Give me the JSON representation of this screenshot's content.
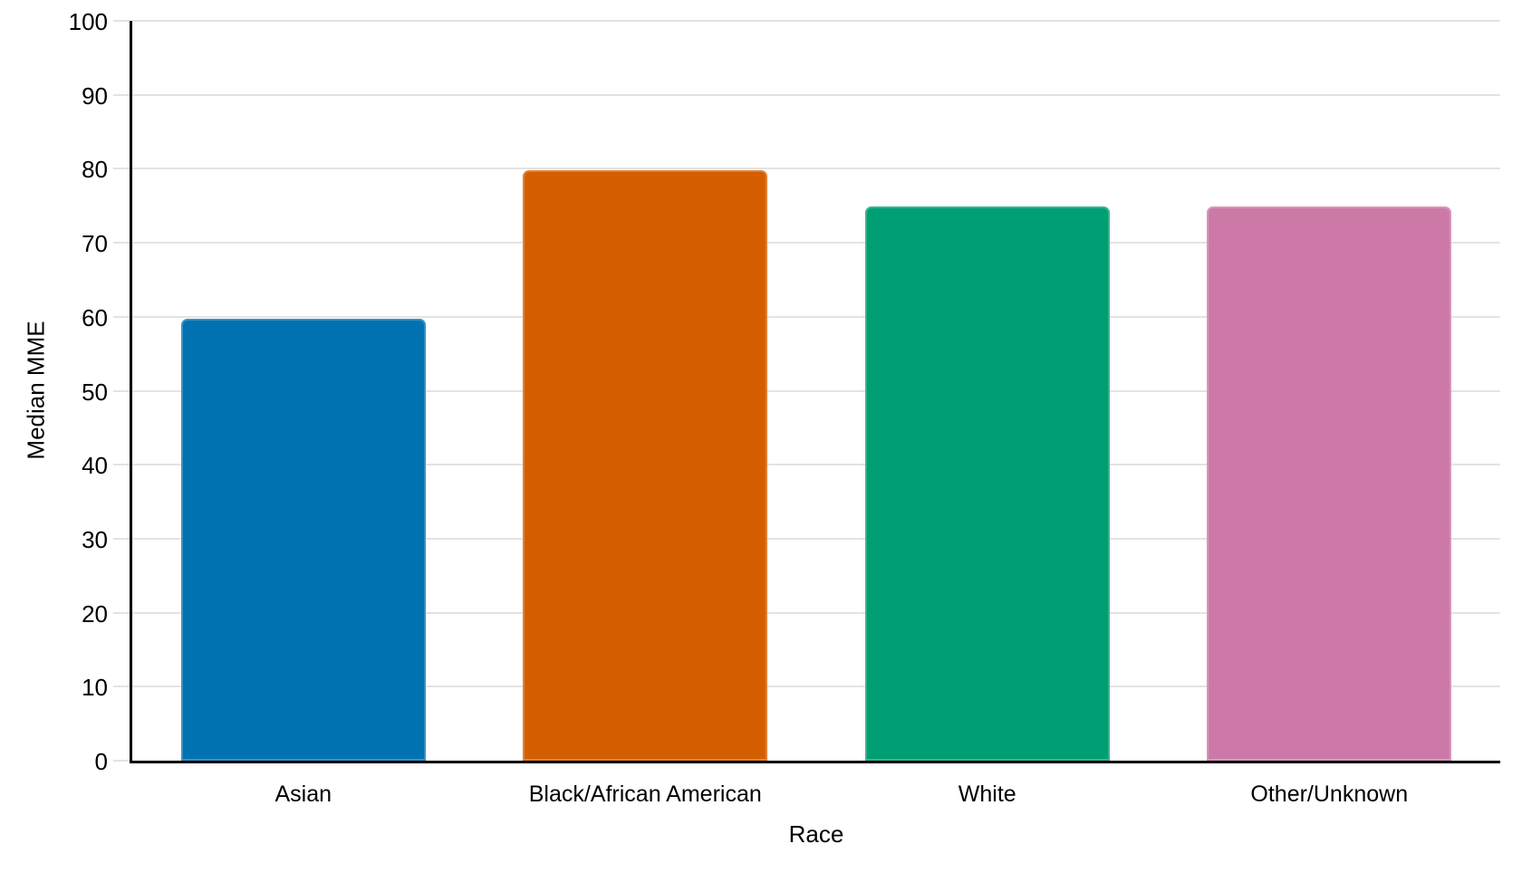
{
  "chart_data": {
    "type": "bar",
    "title": "",
    "categories": [
      "Asian",
      "Black/African American",
      "White",
      "Other/Unknown"
    ],
    "values": [
      59.7,
      79.8,
      74.9,
      74.9
    ],
    "xlabel": "Race",
    "ylabel": "Median MME",
    "ylim": [
      0,
      100
    ],
    "yticks": [
      0,
      10,
      20,
      30,
      40,
      50,
      60,
      70,
      80,
      90,
      100
    ],
    "grid": "horizontal",
    "legend": "none",
    "bar_colors": [
      "#0072B2",
      "#D55E00",
      "#009E73",
      "#CC79A7"
    ],
    "colors": {
      "gridline": "#e3e3e3",
      "axis": "#000000",
      "text": "#000000",
      "background": "#ffffff"
    }
  }
}
